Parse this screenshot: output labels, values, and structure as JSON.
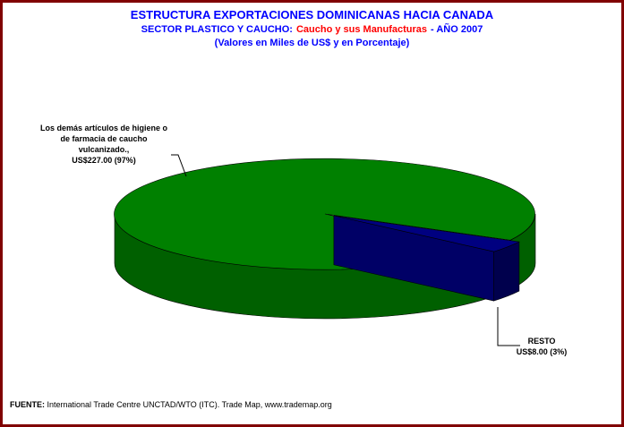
{
  "chart_data": {
    "type": "pie",
    "title": "ESTRUCTURA EXPORTACIONES DOMINICANAS HACIA CANADA",
    "subtitle": [
      {
        "text": "SECTOR PLASTICO Y CAUCHO:",
        "color": "#0000ff"
      },
      {
        "text": "Caucho y sus Manufacturas",
        "color": "#ff0000"
      },
      {
        "text": "- AÑO 2007",
        "color": "#0000ff"
      }
    ],
    "note": "(Valores en Miles de US$ y en Porcentaje)",
    "categories": [
      "Los demás artículos de higiene o de farmacia de caucho vulcanizado.,",
      "RESTO"
    ],
    "values": [
      227,
      8
    ],
    "value_labels": [
      "US$227.00 (97%)",
      "US$8.00 (3%)"
    ],
    "colors": [
      "#008000",
      "#000080"
    ],
    "source": {
      "label": "FUENTE:",
      "text": "International Trade Centre UNCTAD/WTO (ITC). Trade Map, www.trademap.org"
    }
  }
}
